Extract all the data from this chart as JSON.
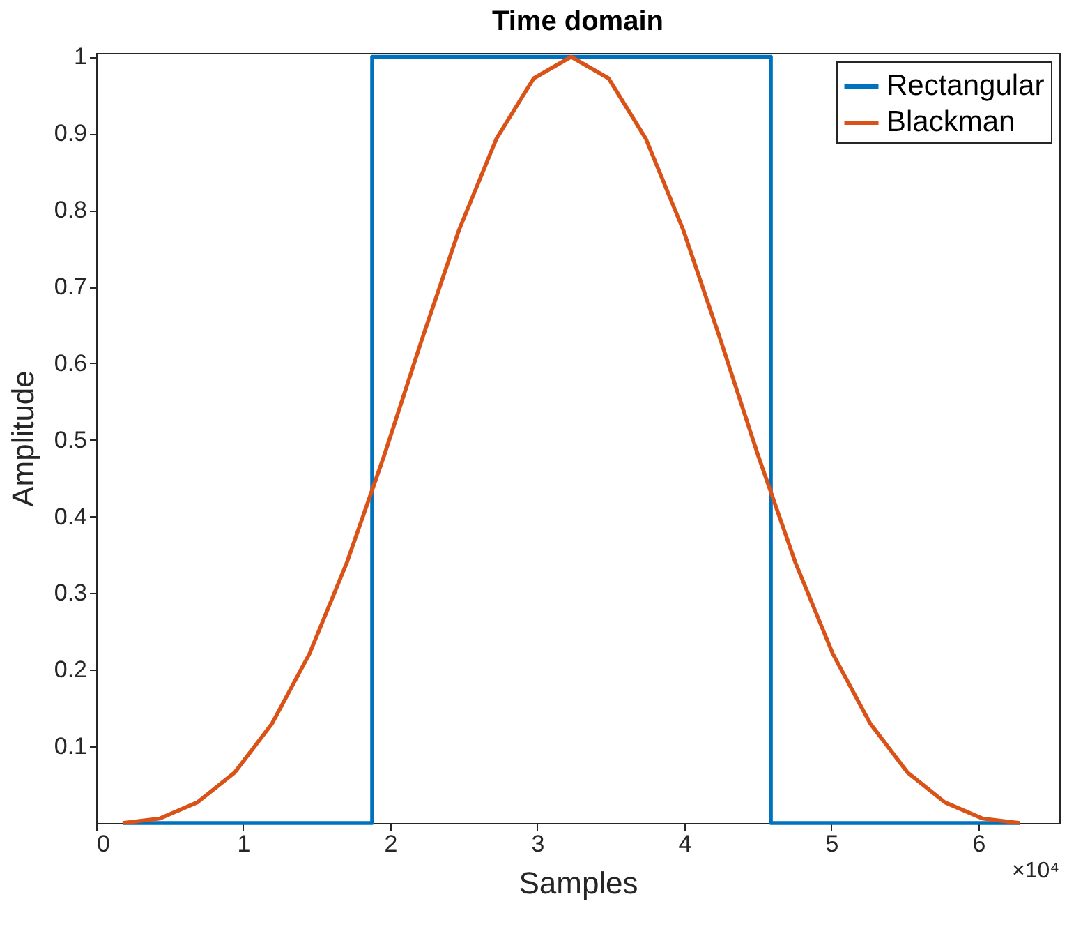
{
  "chart_data": {
    "type": "line",
    "title": "Time domain",
    "xlabel": "Samples",
    "ylabel": "Amplitude",
    "annotations": [
      "×10⁴"
    ],
    "xlim": [
      0,
      6.55
    ],
    "ylim": [
      0,
      1.005
    ],
    "xticks": [
      0,
      1,
      2,
      3,
      4,
      5,
      6
    ],
    "yticks": [
      0.1,
      0.2,
      0.3,
      0.4,
      0.5,
      0.6,
      0.7,
      0.8,
      0.9,
      1
    ],
    "legend": "top right",
    "grid": false,
    "series": [
      {
        "name": "Rectangular",
        "color": "#0072bd",
        "x": [
          0.18,
          1.877,
          1.877,
          4.588,
          4.588,
          6.28
        ],
        "values": [
          0,
          0,
          1,
          1,
          0,
          0
        ]
      },
      {
        "name": "Blackman",
        "color": "#d95319",
        "x": [
          0.18,
          0.4342,
          0.6883,
          0.9425,
          1.1967,
          1.4508,
          1.705,
          1.9592,
          2.2133,
          2.4675,
          2.7217,
          2.9758,
          3.23,
          3.4842,
          3.7383,
          3.9925,
          4.2467,
          4.5008,
          4.755,
          5.0092,
          5.2633,
          5.5175,
          5.7717,
          6.0258,
          6.28
        ],
        "values": [
          0,
          0.006,
          0.027,
          0.066,
          0.13,
          0.221,
          0.34,
          0.48,
          0.63,
          0.774,
          0.893,
          0.972,
          1,
          0.972,
          0.893,
          0.774,
          0.63,
          0.48,
          0.34,
          0.221,
          0.13,
          0.066,
          0.027,
          0.006,
          0
        ]
      }
    ]
  }
}
